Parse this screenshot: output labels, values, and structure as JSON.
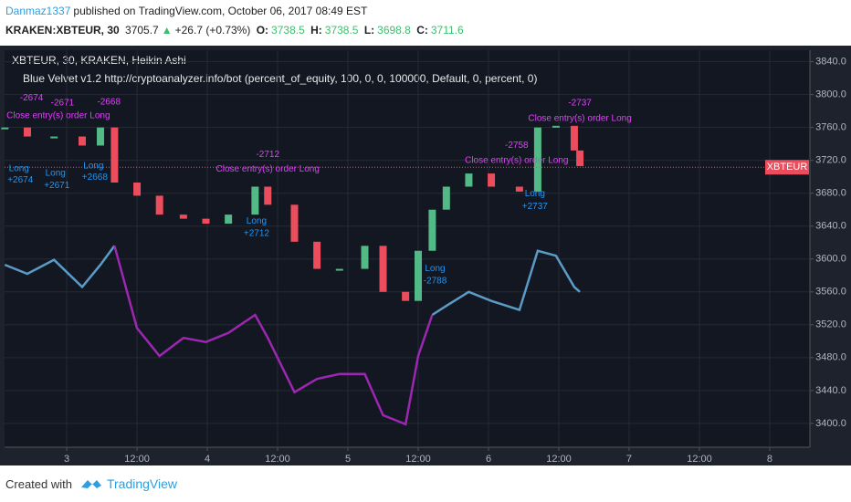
{
  "header": {
    "author": "Danmaz1337",
    "published": "published on TradingView.com, October 06, 2017 08:49 EST",
    "symbol": "KRAKEN:XBTEUR, 30",
    "last": "3705.7",
    "arrow": "▲",
    "change": "+26.7 (+0.73%)",
    "o_label": "O:",
    "o": "3738.5",
    "h_label": "H:",
    "h": "3738.5",
    "l_label": "L:",
    "l": "3698.8",
    "c_label": "C:",
    "c": "3711.6"
  },
  "chart_data": {
    "type": "line",
    "title": "XBTEUR, 30, KRAKEN, Heikin Ashi",
    "subtitle": "Blue Velvet v1.2 http://cryptoanalyzer.info/bot (percent_of_equity, 100, 0, 0, 100000, Default, 0, percent, 0)",
    "x": [
      2.56,
      2.72,
      2.91,
      3.11,
      3.24,
      3.34,
      3.5,
      3.66,
      3.83,
      3.99,
      4.15,
      4.34,
      4.43,
      4.62,
      4.78,
      4.94,
      5.12,
      5.25,
      5.41,
      5.5,
      5.6,
      5.7,
      5.86,
      6.02,
      6.22,
      6.35,
      6.48,
      6.61,
      6.65
    ],
    "close": {
      "values": [
        3760,
        3749,
        3749,
        3738,
        3760,
        3693,
        3677,
        3654,
        3649,
        3643,
        3654,
        3688,
        3666,
        3621,
        3588,
        3588,
        3616,
        3560,
        3549,
        3610,
        3660,
        3688,
        3704,
        3688,
        3682,
        3760,
        3762,
        3732,
        3713
      ],
      "up_color": "#53b987",
      "down_color": "#eb4d5c"
    },
    "series": [
      {
        "color": "#5b9cc6",
        "values": [
          3593,
          3582,
          3599,
          3566,
          3593,
          3616,
          null,
          null,
          null,
          null,
          null,
          null,
          null,
          null,
          null,
          null,
          null,
          null,
          null,
          null,
          3532,
          3543,
          3560,
          3549,
          3538,
          3610,
          3604,
          3566,
          3560
        ]
      },
      {
        "color": "#9c27b0",
        "values": [
          null,
          null,
          null,
          null,
          null,
          3616,
          3516,
          3482,
          3504,
          3499,
          3510,
          3532,
          3504,
          3438,
          3454,
          3460,
          3460,
          3410,
          3399,
          3482,
          3532,
          null,
          null,
          null,
          null,
          null,
          null,
          null,
          null
        ]
      }
    ],
    "last_price": 3711.6,
    "last_price_label": "XBTEUR",
    "xlim": [
      2.558,
      8.286
    ],
    "xticks": [
      3,
      {
        "value": 3.5,
        "label": "12:00"
      },
      4,
      {
        "value": 4.5,
        "label": "12:00"
      },
      5,
      {
        "value": 5.5,
        "label": "12:00"
      },
      6,
      {
        "value": 6.5,
        "label": "12:00"
      },
      7,
      {
        "value": 7.5,
        "label": "12:00"
      },
      8
    ],
    "ylim": [
      3371,
      3854
    ],
    "yticks": [
      {
        "value": 3400,
        "label": "3400.0"
      },
      {
        "value": 3440,
        "label": "3440.0"
      },
      {
        "value": 3480,
        "label": "3480.0"
      },
      {
        "value": 3520,
        "label": "3520.0"
      },
      {
        "value": 3560,
        "label": "3560.0"
      },
      {
        "value": 3600,
        "label": "3600.0"
      },
      {
        "value": 3640,
        "label": "3640.0"
      },
      {
        "value": 3680,
        "label": "3680.0"
      },
      {
        "value": 3720,
        "label": "3720.0"
      },
      {
        "value": 3760,
        "label": "3760.0"
      },
      {
        "value": 3800,
        "label": "3800.0"
      },
      {
        "value": 3840,
        "label": "3840.0"
      }
    ],
    "grid": true,
    "annotations": [
      {
        "text": "-2674",
        "x": 2.75,
        "y": 3796,
        "color": "#e040fb"
      },
      {
        "text": "-2671",
        "x": 2.97,
        "y": 3790,
        "color": "#e040fb"
      },
      {
        "text": "-2668",
        "x": 3.3,
        "y": 3791,
        "color": "#e040fb"
      },
      {
        "text": "Close entry(s) order Long",
        "x": 2.94,
        "y": 3774,
        "color": "#e040fb"
      },
      {
        "text": "Long",
        "x": 2.66,
        "y": 3710,
        "color": "#2196f3"
      },
      {
        "text": "+2674",
        "x": 2.67,
        "y": 3696,
        "color": "#2196f3"
      },
      {
        "text": "Long",
        "x": 2.92,
        "y": 3704,
        "color": "#2196f3"
      },
      {
        "text": "+2671",
        "x": 2.93,
        "y": 3689,
        "color": "#2196f3"
      },
      {
        "text": "Long",
        "x": 3.19,
        "y": 3713,
        "color": "#2196f3"
      },
      {
        "text": "+2668",
        "x": 3.2,
        "y": 3699,
        "color": "#2196f3"
      },
      {
        "text": "-2712",
        "x": 4.43,
        "y": 3727,
        "color": "#e040fb"
      },
      {
        "text": "Close entry(s) order Long",
        "x": 4.43,
        "y": 3709,
        "color": "#e040fb"
      },
      {
        "text": "Long",
        "x": 4.35,
        "y": 3646,
        "color": "#2196f3"
      },
      {
        "text": "+2712",
        "x": 4.35,
        "y": 3631,
        "color": "#2196f3"
      },
      {
        "text": "Long",
        "x": 5.62,
        "y": 3588,
        "color": "#2196f3"
      },
      {
        "text": "-2788",
        "x": 5.62,
        "y": 3573,
        "color": "#2196f3"
      },
      {
        "text": "-2758",
        "x": 6.2,
        "y": 3738,
        "color": "#e040fb"
      },
      {
        "text": "Close entry(s) order Long",
        "x": 6.2,
        "y": 3720,
        "color": "#e040fb"
      },
      {
        "text": "Long",
        "x": 6.33,
        "y": 3679,
        "color": "#2196f3"
      },
      {
        "text": "+2737",
        "x": 6.33,
        "y": 3664,
        "color": "#2196f3"
      },
      {
        "text": "-2737",
        "x": 6.65,
        "y": 3790,
        "color": "#e040fb"
      },
      {
        "text": "Close entry(s) order Long",
        "x": 6.65,
        "y": 3771,
        "color": "#e040fb"
      }
    ]
  },
  "footer": {
    "created": "Created with",
    "brand": "TradingView"
  }
}
